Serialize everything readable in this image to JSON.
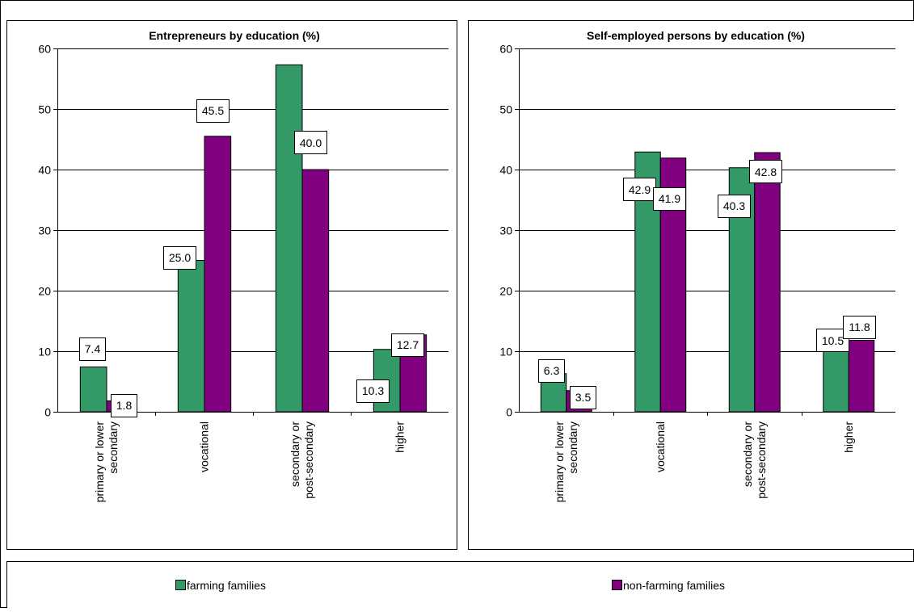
{
  "colors": {
    "farming": "#339966",
    "non_farming": "#800080",
    "border": "#000000",
    "background": "#ffffff"
  },
  "legend": {
    "farming_label": "farming families",
    "non_farming_label": "non-farming families"
  },
  "chart_data": [
    {
      "type": "bar",
      "title": "Entrepreneurs by education (%)",
      "xlabel": "",
      "ylabel": "",
      "ylim": [
        0,
        60
      ],
      "yticks": [
        0,
        10,
        20,
        30,
        40,
        50,
        60
      ],
      "grid": true,
      "legend_position": "bottom",
      "categories": [
        [
          "primary or lower",
          "secondary"
        ],
        [
          "vocational"
        ],
        [
          "secondary or",
          "post-secondary"
        ],
        [
          "higher"
        ]
      ],
      "series": [
        {
          "name": "farming families",
          "values": [
            7.4,
            25.0,
            57.3,
            10.3
          ],
          "labels": [
            "7.4",
            "25.0",
            "57.3",
            "10.3"
          ]
        },
        {
          "name": "non-farming families",
          "values": [
            1.8,
            45.5,
            40.0,
            12.7
          ],
          "labels": [
            "1.8",
            "45.5",
            "40.0",
            "12.7"
          ]
        }
      ]
    },
    {
      "type": "bar",
      "title": "Self-employed persons by education (%)",
      "xlabel": "",
      "ylabel": "",
      "ylim": [
        0,
        60
      ],
      "yticks": [
        0,
        10,
        20,
        30,
        40,
        50,
        60
      ],
      "grid": true,
      "legend_position": "bottom",
      "categories": [
        [
          "primary or lower",
          "secondary"
        ],
        [
          "vocational"
        ],
        [
          "secondary or",
          "post-secondary"
        ],
        [
          "higher"
        ]
      ],
      "series": [
        {
          "name": "farming families",
          "values": [
            6.3,
            42.9,
            40.3,
            10.5
          ],
          "labels": [
            "6.3",
            "42.9",
            "40.3",
            "10.5"
          ]
        },
        {
          "name": "non-farming families",
          "values": [
            3.5,
            41.9,
            42.8,
            11.8
          ],
          "labels": [
            "3.5",
            "41.9",
            "42.8",
            "11.8"
          ]
        }
      ]
    }
  ]
}
